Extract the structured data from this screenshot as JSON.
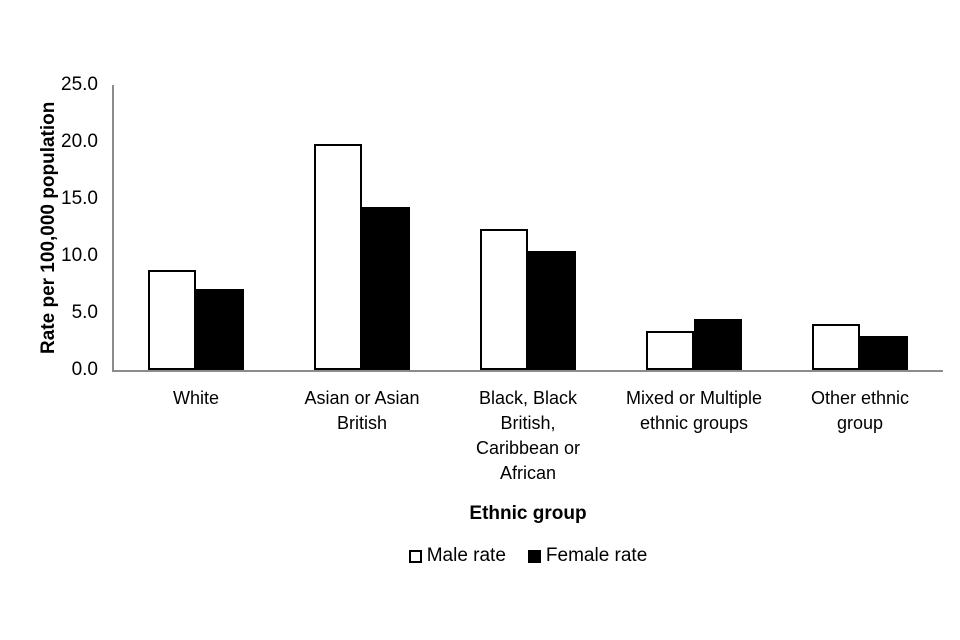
{
  "figure": {
    "background": "#ffffff",
    "axis_color": "#8c8c8c",
    "text_color": "#000000"
  },
  "chart_data": {
    "type": "bar",
    "title": "",
    "xlabel": "Ethnic group",
    "ylabel": "Rate per 100,000 population",
    "ylim": [
      0,
      25
    ],
    "ytick_step": 5,
    "ytick_labels": [
      "0.0",
      "5.0",
      "10.0",
      "15.0",
      "20.0",
      "25.0"
    ],
    "grid": false,
    "legend_position": "bottom",
    "categories": [
      "White",
      "Asian or Asian British",
      "Black, Black British, Caribbean or African",
      "Mixed or Multiple ethnic groups",
      "Other ethnic group"
    ],
    "category_label_lines": [
      [
        "White"
      ],
      [
        "Asian or Asian",
        "British"
      ],
      [
        "Black, Black",
        "British,",
        "Caribbean or",
        "African"
      ],
      [
        "Mixed or Multiple",
        "ethnic groups"
      ],
      [
        "Other ethnic",
        "group"
      ]
    ],
    "series": [
      {
        "name": "Male rate",
        "values": [
          8.8,
          19.8,
          12.4,
          3.4,
          4.0
        ],
        "fill": "#ffffff",
        "border": "#000000"
      },
      {
        "name": "Female rate",
        "values": [
          7.1,
          14.3,
          10.4,
          4.5,
          3.0
        ],
        "fill": "#000000",
        "border": "#000000"
      }
    ]
  },
  "axes": {
    "x_title": "Ethnic group",
    "y_title": "Rate per 100,000 population"
  },
  "legend": {
    "male_label": "Male rate",
    "female_label": "Female rate"
  }
}
